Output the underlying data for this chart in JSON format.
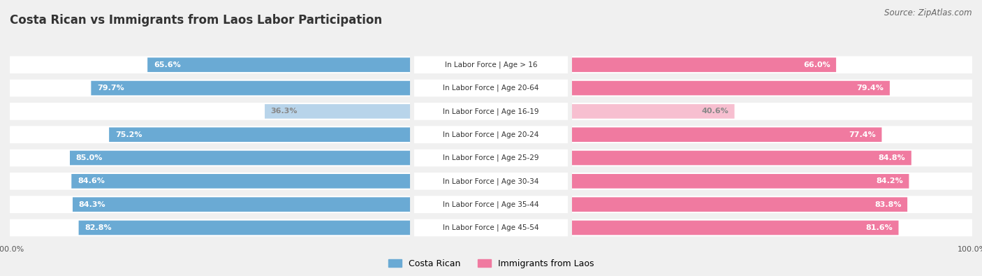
{
  "title": "Costa Rican vs Immigrants from Laos Labor Participation",
  "source": "Source: ZipAtlas.com",
  "categories": [
    "In Labor Force | Age > 16",
    "In Labor Force | Age 20-64",
    "In Labor Force | Age 16-19",
    "In Labor Force | Age 20-24",
    "In Labor Force | Age 25-29",
    "In Labor Force | Age 30-34",
    "In Labor Force | Age 35-44",
    "In Labor Force | Age 45-54"
  ],
  "costa_rican": [
    65.6,
    79.7,
    36.3,
    75.2,
    85.0,
    84.6,
    84.3,
    82.8
  ],
  "immigrants_laos": [
    66.0,
    79.4,
    40.6,
    77.4,
    84.8,
    84.2,
    83.8,
    81.6
  ],
  "costa_rican_color_full": "#6aaad4",
  "costa_rican_color_light": "#b8d4ea",
  "immigrants_color_full": "#f07aa0",
  "immigrants_color_light": "#f7bfd0",
  "label_color_full": "white",
  "label_color_light": "#888888",
  "bg_color": "#f0f0f0",
  "row_bg": "#e8e8e8",
  "bar_bg": "#ffffff",
  "max_val": 100.0,
  "legend_costa": "Costa Rican",
  "legend_immigrants": "Immigrants from Laos",
  "title_fontsize": 12,
  "source_fontsize": 8.5,
  "label_fontsize": 8,
  "category_fontsize": 7.5,
  "legend_fontsize": 9
}
